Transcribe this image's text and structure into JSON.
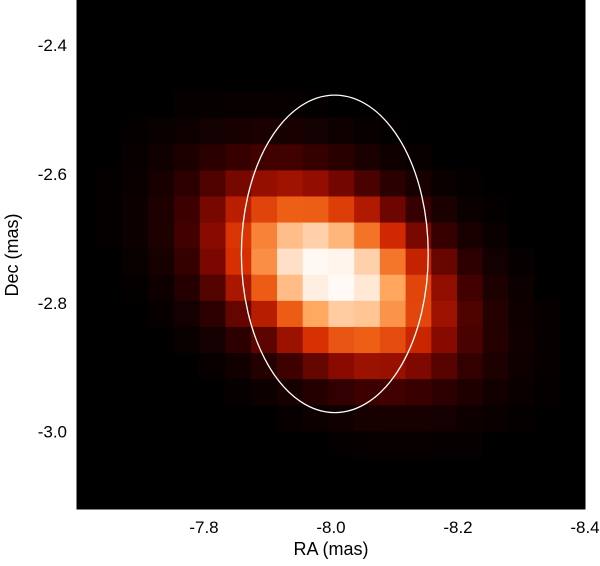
{
  "chart_data": {
    "type": "heatmap",
    "title": "",
    "xlabel": "RA (mas)",
    "ylabel": "Dec (mas)",
    "xlim": [
      -7.6,
      -8.4
    ],
    "ylim": [
      -3.12,
      -2.33
    ],
    "x_reversed": true,
    "x_ticks": [
      -7.8,
      -8.0,
      -8.2,
      -8.4
    ],
    "x_tick_labels": [
      "-7.8",
      "-8.0",
      "-8.2",
      "-8.4"
    ],
    "y_ticks": [
      -2.4,
      -2.6,
      -2.8,
      -3.0
    ],
    "y_tick_labels": [
      "-2.4",
      "-2.6",
      "-2.8",
      "-3.0"
    ],
    "grid": false,
    "colormap": "hot",
    "colormap_stops": [
      "#000000",
      "#3a0000",
      "#8a0a00",
      "#d42a00",
      "#f06418",
      "#ffa860",
      "#ffe0c8",
      "#ffffff"
    ],
    "pixel_scale_mas": 0.0405,
    "source": {
      "center_ra": -8.0,
      "center_dec": -2.755,
      "sigma_major_mas": 0.118,
      "sigma_minor_mas": 0.074,
      "major_axis_pa_deg": 150
    },
    "ellipse": {
      "center_ra": -8.006,
      "center_dec": -2.724,
      "semi_major_mas": 0.25,
      "semi_minor_mas": 0.145,
      "major_axis_pa_deg": 150,
      "color": "#ffffff"
    }
  }
}
